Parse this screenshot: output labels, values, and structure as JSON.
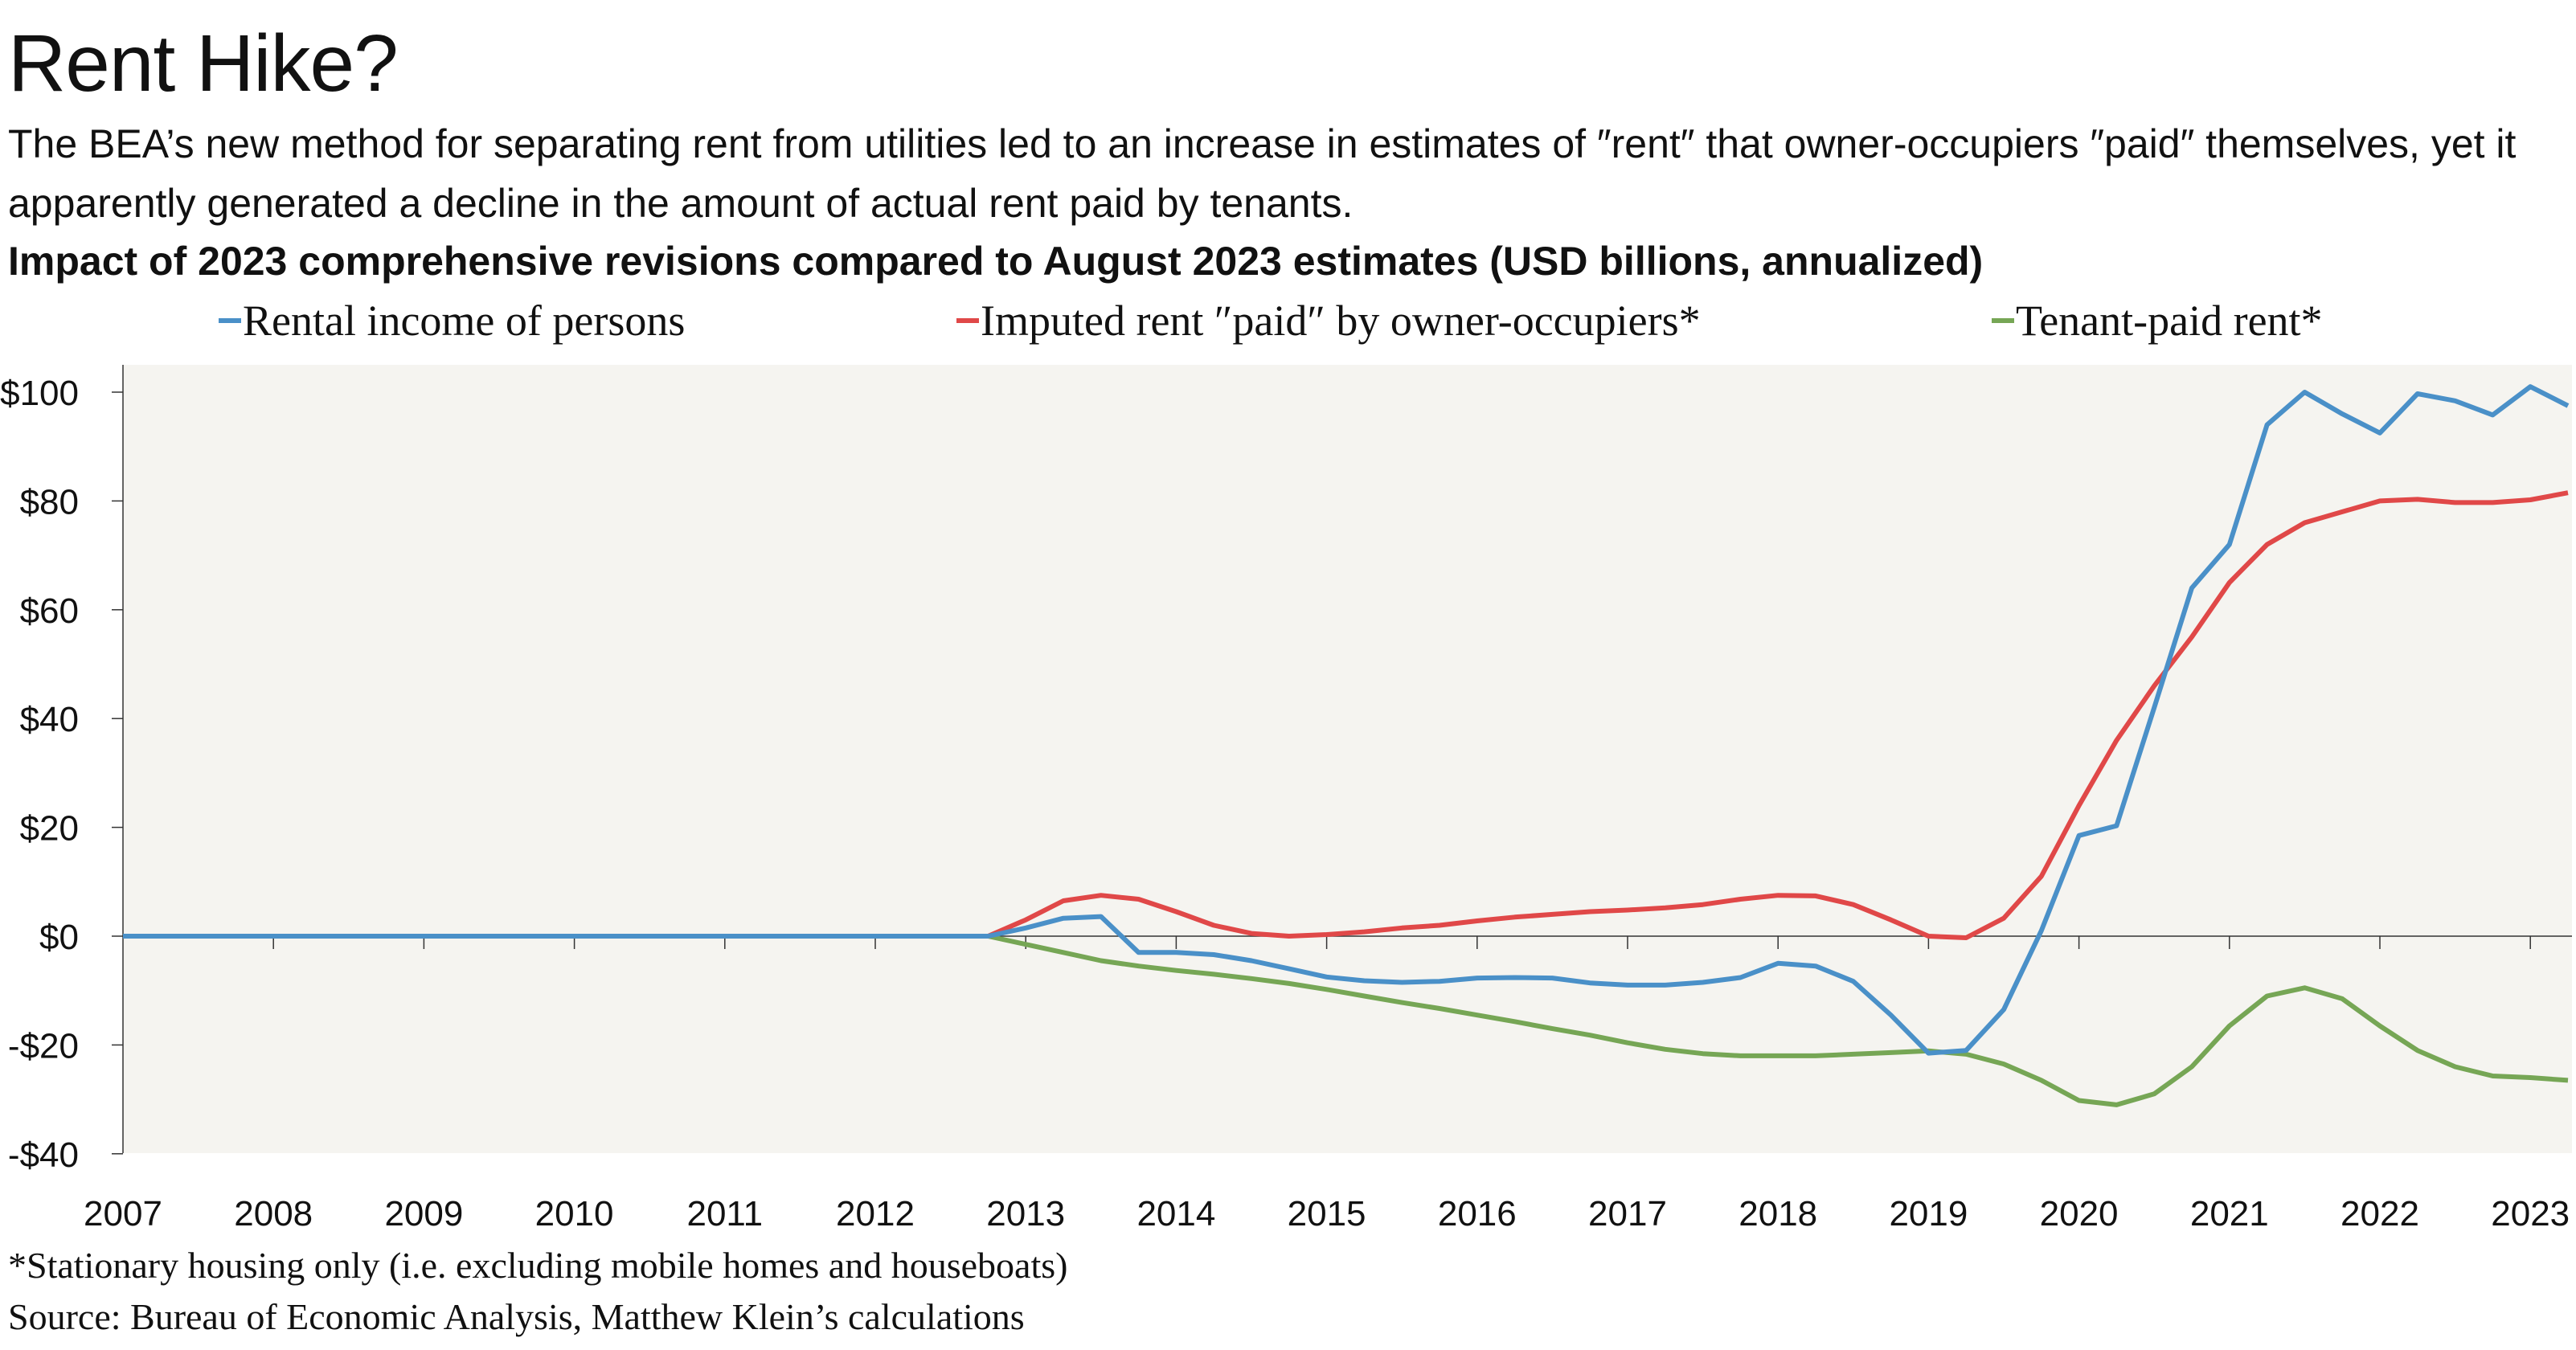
{
  "title": "Rent Hike?",
  "subtitle": "The BEA’s new method for separating rent from utilities led to an increase in estimates of ″rent″ that owner-occupiers ″paid″ themselves, yet it apparently generated a decline in the amount of actual rent paid by tenants.",
  "footnotes": [
    "*Stationary housing only (i.e. excluding mobile homes and houseboats)",
    "Source: Bureau of Economic Analysis, Matthew Klein’s calculations"
  ],
  "chart_data": {
    "type": "line",
    "title": "Impact of 2023 comprehensive revisions compared to August 2023 estimates (USD billions, annualized)",
    "xlabel": "",
    "ylabel": "",
    "frequency": "quarterly",
    "x_start": "2007 Q1",
    "x_end": "2023 Q2",
    "xlim": [
      2007,
      2023.3
    ],
    "ylim": [
      -40,
      105
    ],
    "x_ticks": [
      "2007",
      "2008",
      "2009",
      "2010",
      "2011",
      "2012",
      "2013",
      "2014",
      "2015",
      "2016",
      "2017",
      "2018",
      "2019",
      "2020",
      "2021",
      "2022",
      "2023"
    ],
    "y_ticks": [
      {
        "value": 100,
        "label": "$100"
      },
      {
        "value": 80,
        "label": "$80"
      },
      {
        "value": 60,
        "label": "$60"
      },
      {
        "value": 40,
        "label": "$40"
      },
      {
        "value": 20,
        "label": "$20"
      },
      {
        "value": 0,
        "label": "$0"
      },
      {
        "value": -20,
        "label": "-$20"
      },
      {
        "value": -40,
        "label": "-$40"
      }
    ],
    "grid": false,
    "legend_position": "top",
    "background_color": "#f5f4f0",
    "series": [
      {
        "name": "Rental income of persons",
        "color": "#4a90c8",
        "values": [
          0,
          0,
          0,
          0,
          0,
          0,
          0,
          0,
          0,
          0,
          0,
          0,
          0,
          0,
          0,
          0,
          0,
          0,
          0,
          0,
          0,
          0,
          0,
          0,
          1.5,
          3.3,
          3.6,
          -3,
          -3,
          -3.4,
          -4.5,
          -6,
          -7.5,
          -8.2,
          -8.5,
          -8.3,
          -7.7,
          -7.6,
          -7.7,
          -8.6,
          -9,
          -9,
          -8.5,
          -7.6,
          -5,
          -5.5,
          -8.3,
          -14.5,
          -21.5,
          -21,
          -13.5,
          1,
          18.5,
          20.3,
          42,
          64,
          72,
          94,
          100,
          96,
          92.5,
          99.7,
          98.4,
          95.8,
          101,
          97.5
        ]
      },
      {
        "name": "Imputed rent ″paid″ by owner-occupiers*",
        "color": "#e04848",
        "values": [
          0,
          0,
          0,
          0,
          0,
          0,
          0,
          0,
          0,
          0,
          0,
          0,
          0,
          0,
          0,
          0,
          0,
          0,
          0,
          0,
          0,
          0,
          0,
          0,
          3,
          6.5,
          7.5,
          6.8,
          4.5,
          2,
          0.5,
          0,
          0.3,
          0.8,
          1.5,
          2,
          2.8,
          3.5,
          4,
          4.5,
          4.8,
          5.2,
          5.8,
          6.8,
          7.5,
          7.4,
          5.8,
          3,
          0,
          -0.3,
          3.3,
          11,
          24,
          36,
          46,
          55,
          65,
          72,
          76,
          78,
          80,
          80.3,
          79.7,
          79.7,
          80.2,
          81.5
        ]
      },
      {
        "name": "Tenant-paid rent*",
        "color": "#76a655",
        "values": [
          0,
          0,
          0,
          0,
          0,
          0,
          0,
          0,
          0,
          0,
          0,
          0,
          0,
          0,
          0,
          0,
          0,
          0,
          0,
          0,
          0,
          0,
          0,
          0,
          -1.5,
          -3,
          -4.5,
          -5.5,
          -6.3,
          -7,
          -7.8,
          -8.7,
          -9.8,
          -11,
          -12.2,
          -13.3,
          -14.5,
          -15.7,
          -17,
          -18.2,
          -19.6,
          -20.8,
          -21.6,
          -22,
          -22,
          -22,
          -21.7,
          -21.4,
          -21.1,
          -21.7,
          -23.5,
          -26.5,
          -30.2,
          -31,
          -29,
          -24,
          -16.5,
          -11,
          -9.5,
          -11.5,
          -16.5,
          -21,
          -24,
          -25.7,
          -26,
          -26.5
        ]
      }
    ]
  }
}
